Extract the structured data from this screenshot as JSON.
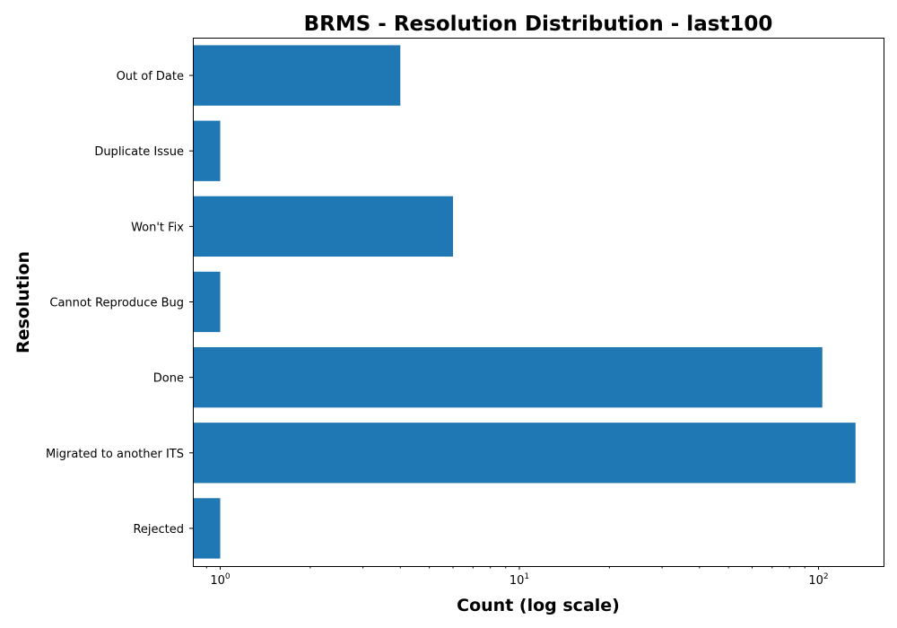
{
  "chart_data": {
    "type": "bar",
    "orientation": "horizontal",
    "title": "BRMS - Resolution Distribution - last100",
    "xlabel": "Count (log scale)",
    "ylabel": "Resolution",
    "x_scale": "log",
    "xlim": [
      0.81,
      165
    ],
    "x_ticks": [
      {
        "value": 1,
        "base": "10",
        "exp": "0"
      },
      {
        "value": 10,
        "base": "10",
        "exp": "1"
      },
      {
        "value": 100,
        "base": "10",
        "exp": "2"
      }
    ],
    "categories": [
      "Out of Date",
      "Duplicate Issue",
      "Won't Fix",
      "Cannot Reproduce Bug",
      "Done",
      "Migrated to another ITS",
      "Rejected"
    ],
    "values": [
      4,
      1,
      6,
      1,
      103,
      133,
      1
    ],
    "color": "#1f77b4",
    "grid": false
  }
}
